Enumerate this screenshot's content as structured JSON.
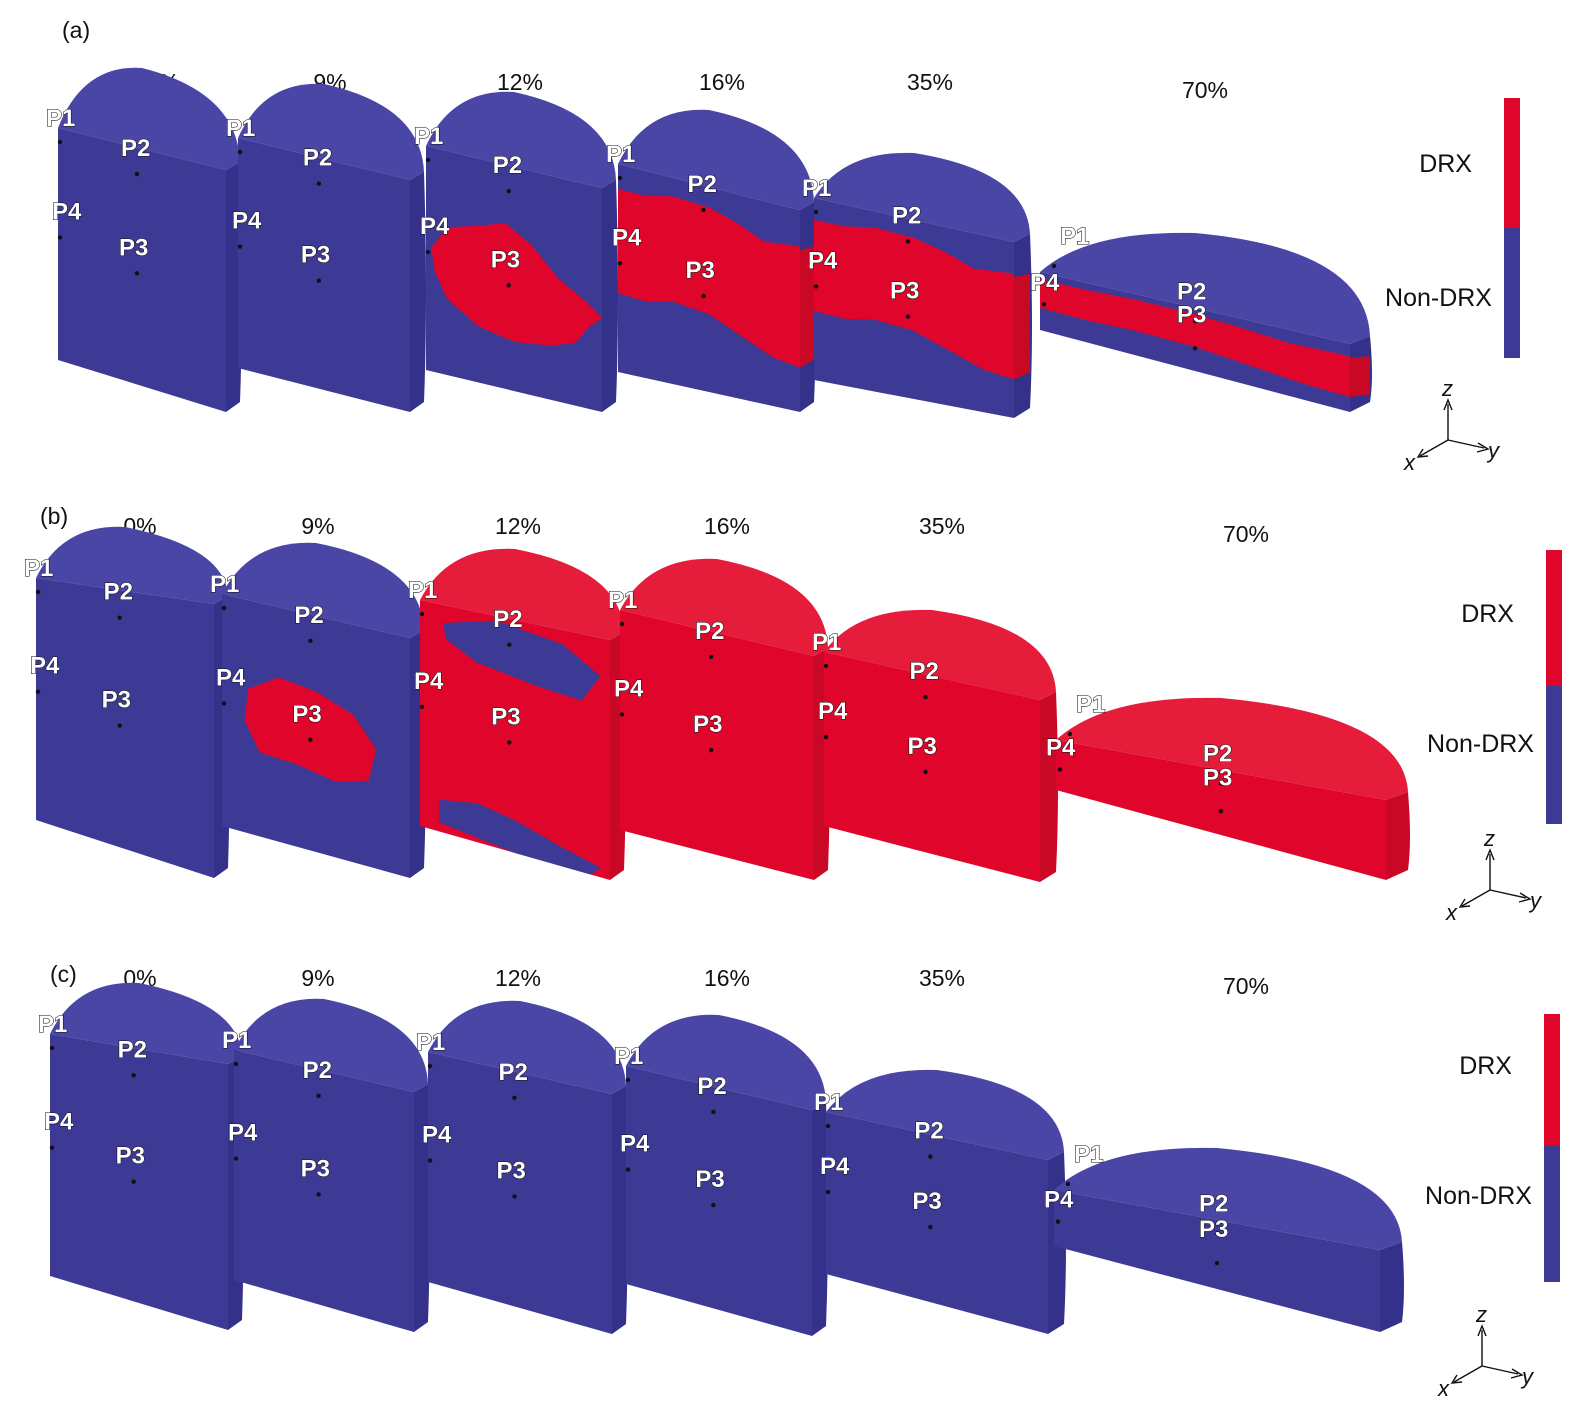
{
  "colors": {
    "drx": "#e0062b",
    "non_drx": "#3d3a96"
  },
  "legend": {
    "drx_label": "DRX",
    "non_drx_label": "Non-DRX"
  },
  "axes": {
    "z": "z",
    "x": "x",
    "y": "y"
  },
  "point_labels": [
    "P1",
    "P2",
    "P3",
    "P4"
  ],
  "panels": [
    {
      "letter": "(a)",
      "strains": [
        "0%",
        "9%",
        "12%",
        "16%",
        "35%",
        "70%"
      ],
      "drx_state": [
        "none",
        "none",
        "core",
        "middle-band",
        "middle-band",
        "middle-band"
      ]
    },
    {
      "letter": "(b)",
      "strains": [
        "0%",
        "9%",
        "12%",
        "16%",
        "35%",
        "70%"
      ],
      "drx_state": [
        "none",
        "small-core",
        "most",
        "full",
        "full",
        "full"
      ]
    },
    {
      "letter": "(c)",
      "strains": [
        "0%",
        "9%",
        "12%",
        "16%",
        "35%",
        "70%"
      ],
      "drx_state": [
        "none",
        "none",
        "none",
        "none",
        "none",
        "none"
      ]
    }
  ]
}
